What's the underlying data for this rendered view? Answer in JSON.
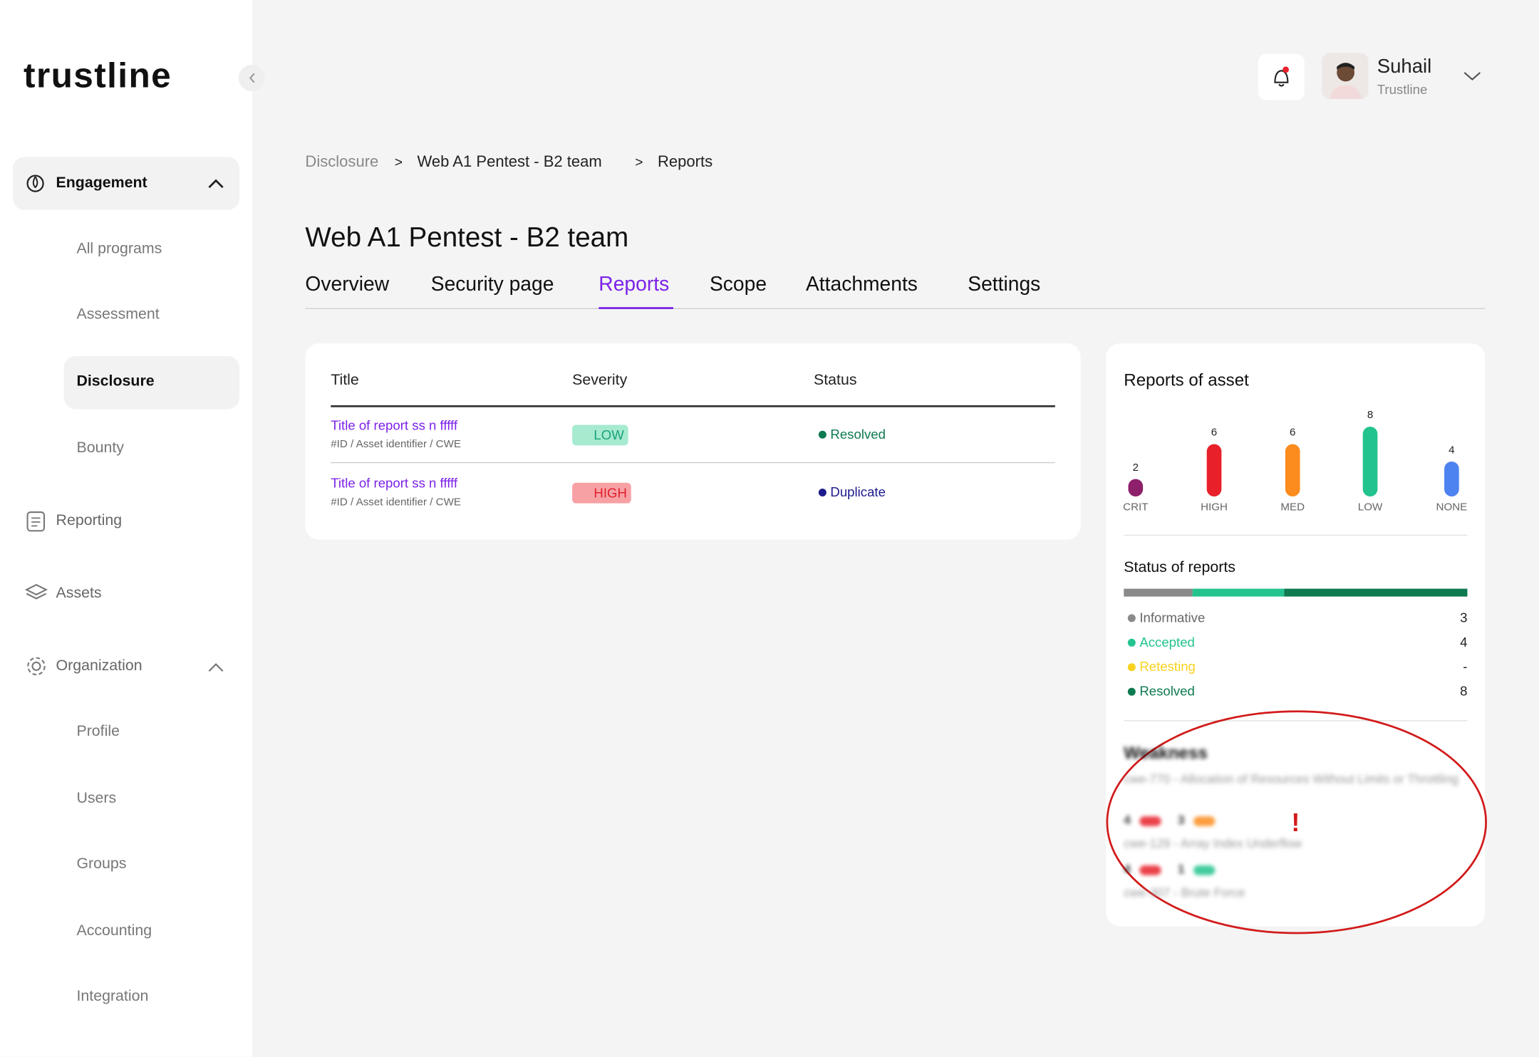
{
  "brand": "trustline",
  "sidebar": {
    "engagement": {
      "label": "Engagement",
      "items": [
        "All programs",
        "Assessment",
        "Disclosure",
        "Bounty"
      ],
      "active_item": 2
    },
    "reporting": "Reporting",
    "assets": "Assets",
    "organization": {
      "label": "Organization",
      "items": [
        "Profile",
        "Users",
        "Groups",
        "Accounting",
        "Integration"
      ]
    }
  },
  "user": {
    "name": "Suhail",
    "org": "Trustline"
  },
  "breadcrumb": {
    "items": [
      "Disclosure",
      "Web A1 Pentest - B2 team",
      "Reports"
    ],
    "separator": ">"
  },
  "title": "Web A1 Pentest - B2 team",
  "tabs": {
    "items": [
      "Overview",
      "Security page",
      "Reports",
      "Scope",
      "Attachments",
      "Settings"
    ],
    "active": 2
  },
  "table": {
    "columns": [
      "Title",
      "Severity",
      "Status"
    ],
    "rows": [
      {
        "title": "Title of report ss n fffff",
        "subtitle": "#ID / Asset identifier / CWE",
        "severity": "LOW",
        "status": "Resolved"
      },
      {
        "title": "Title of report ss n fffff",
        "subtitle": "#ID / Asset identifier / CWE",
        "severity": "HIGH",
        "status": "Duplicate"
      }
    ]
  },
  "reports_of_asset": {
    "title": "Reports of asset",
    "categories": [
      "CRIT",
      "HIGH",
      "MED",
      "LOW",
      "NONE"
    ],
    "values": [
      2,
      6,
      6,
      8,
      4
    ],
    "colors": [
      "#8e1f6b",
      "#e8202a",
      "#fb8c1d",
      "#22c38e",
      "#4d83f0"
    ]
  },
  "status_of_reports": {
    "title": "Status of reports",
    "items": [
      {
        "label": "Informative",
        "count": 3,
        "color": "#8a8a8a"
      },
      {
        "label": "Accepted",
        "count": 4,
        "color": "#22c38e"
      },
      {
        "label": "Retesting",
        "count": "-",
        "color": "#f8d21e"
      },
      {
        "label": "Resolved",
        "count": 8,
        "color": "#0d7a4f"
      }
    ]
  },
  "weakness": {
    "title": "Weakness",
    "items": [
      {
        "name": "cwe-770 - Allocation of Resources Without Limits or Throttling",
        "counts": [
          4,
          3
        ]
      },
      {
        "name": "cwe-129 - Array Index Underflow",
        "counts": [
          4,
          1
        ]
      },
      {
        "name": "cwe-307 - Brute Force",
        "counts": []
      }
    ]
  }
}
